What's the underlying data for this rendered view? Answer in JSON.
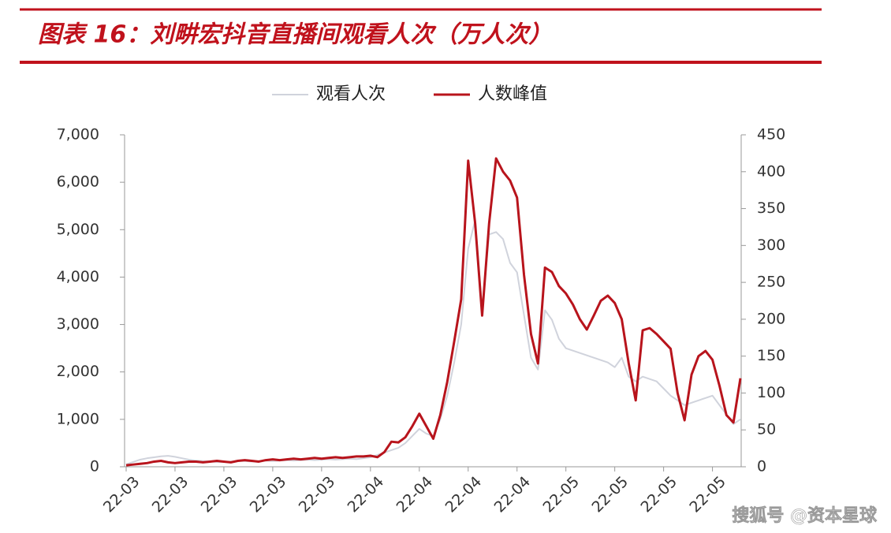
{
  "chart_data": {
    "type": "line",
    "title": "图表 16：刘畊宏抖音直播间观看人次（万人次）",
    "watermark": "搜狐号 @资本星球",
    "categories": [
      "22-03",
      null,
      null,
      null,
      null,
      null,
      null,
      "22-03",
      null,
      null,
      null,
      null,
      null,
      null,
      "22-03",
      null,
      null,
      null,
      null,
      null,
      null,
      "22-03",
      null,
      null,
      null,
      null,
      null,
      null,
      "22-03",
      null,
      null,
      null,
      null,
      null,
      null,
      "22-04",
      null,
      null,
      null,
      null,
      null,
      null,
      "22-04",
      null,
      null,
      null,
      null,
      null,
      null,
      "22-04",
      null,
      null,
      null,
      null,
      null,
      null,
      "22-04",
      null,
      null,
      null,
      null,
      null,
      null,
      "22-05",
      null,
      null,
      null,
      null,
      null,
      null,
      "22-05",
      null,
      null,
      null,
      null,
      null,
      null,
      "22-05",
      null,
      null,
      null,
      null,
      null,
      null,
      "22-05",
      null,
      null,
      null,
      null
    ],
    "series": [
      {
        "name": "观看人次",
        "color": "#d0d3dc",
        "axis": "y",
        "values": [
          50,
          100,
          150,
          180,
          200,
          220,
          230,
          210,
          180,
          150,
          130,
          120,
          110,
          100,
          100,
          110,
          120,
          120,
          110,
          120,
          130,
          120,
          130,
          140,
          130,
          140,
          150,
          140,
          150,
          160,
          150,
          160,
          170,
          160,
          180,
          200,
          250,
          300,
          350,
          400,
          500,
          650,
          800,
          700,
          650,
          1000,
          1500,
          2200,
          3000,
          4600,
          5200,
          3300,
          4900,
          4950,
          4800,
          4300,
          4100,
          3200,
          2300,
          2050,
          3300,
          3100,
          2700,
          2500,
          2450,
          2400,
          2350,
          2300,
          2250,
          2200,
          2100,
          2300,
          1900,
          1800,
          1900,
          1850,
          1800,
          1650,
          1500,
          1400,
          1300,
          1350,
          1400,
          1450,
          1500,
          1300,
          1100,
          900,
          1000
        ]
      },
      {
        "name": "人数峰值",
        "color": "#b8141c",
        "axis": "y2",
        "values": [
          2,
          3,
          4,
          5,
          7,
          8,
          6,
          5,
          6,
          7,
          7,
          6,
          7,
          8,
          7,
          6,
          8,
          9,
          8,
          7,
          9,
          10,
          9,
          10,
          11,
          10,
          11,
          12,
          11,
          12,
          13,
          12,
          13,
          14,
          14,
          15,
          13,
          20,
          34,
          33,
          40,
          55,
          72,
          55,
          38,
          70,
          115,
          170,
          227,
          415,
          330,
          205,
          330,
          418,
          400,
          388,
          365,
          260,
          180,
          140,
          270,
          264,
          245,
          235,
          220,
          200,
          186,
          205,
          225,
          232,
          222,
          200,
          140,
          90,
          185,
          188,
          180,
          170,
          160,
          100,
          63,
          125,
          150,
          157,
          145,
          110,
          70,
          60,
          120
        ]
      }
    ],
    "ylim": [
      0,
      7000
    ],
    "yticks": [
      0,
      {
        "value": 1000,
        "label": "1,000"
      },
      {
        "value": 2000,
        "label": "2,000"
      },
      {
        "value": 3000,
        "label": "3,000"
      },
      {
        "value": 4000,
        "label": "4,000"
      },
      {
        "value": 5000,
        "label": "5,000"
      },
      {
        "value": 6000,
        "label": "6,000"
      },
      {
        "value": 7000,
        "label": "7,000"
      }
    ],
    "y2lim": [
      0,
      450
    ],
    "y2ticks": [
      0,
      50,
      100,
      150,
      200,
      250,
      300,
      350,
      400,
      450
    ],
    "legend": "top"
  }
}
